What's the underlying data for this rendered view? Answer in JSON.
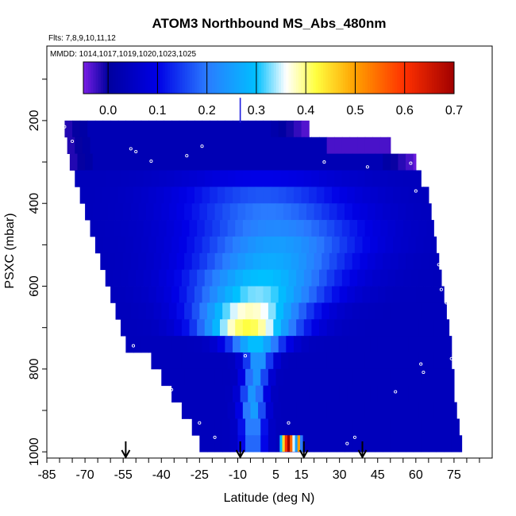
{
  "chart_data": {
    "type": "heatmap",
    "title": "ATOM3 Northbound MS_Abs_480nm",
    "flights_note": "Flts: 7,8,9,10,11,12",
    "dates_note": "MMDD: 1014,1017,1019,1020,1023,1025",
    "xlabel": "Latitude (deg N)",
    "ylabel": "PSXC (mbar)",
    "xlim": [
      -85,
      90
    ],
    "ylim": [
      1015,
      20
    ],
    "x_ticks": [
      "-85",
      "-70",
      "-55",
      "-40",
      "-25",
      "-10",
      "5",
      "15",
      "30",
      "45",
      "60",
      "75"
    ],
    "x_tick_values": [
      -85,
      -70,
      -55,
      -40,
      -25,
      -10,
      5,
      15,
      30,
      45,
      60,
      75
    ],
    "y_ticks": [
      "200",
      "400",
      "600",
      "800",
      "1000"
    ],
    "y_tick_values": [
      200,
      400,
      600,
      800,
      1000
    ],
    "colorbar": {
      "range": [
        -0.05,
        0.7
      ],
      "ticks": [
        "0.0",
        "0.1",
        "0.2",
        "0.3",
        "0.4",
        "0.5",
        "0.6",
        "0.7"
      ],
      "tick_values": [
        0.0,
        0.1,
        0.2,
        0.3,
        0.4,
        0.5,
        0.6,
        0.7
      ],
      "colors": [
        "#7a1ee6",
        "#00009e",
        "#0000e6",
        "#2a7bff",
        "#00c0ff",
        "#ffffff",
        "#ffff40",
        "#ffa000",
        "#ff3000",
        "#a00000"
      ],
      "color_stops": [
        -0.05,
        0.0,
        0.1,
        0.2,
        0.3,
        0.36,
        0.42,
        0.5,
        0.6,
        0.7
      ]
    },
    "arrows_latitude": [
      -54,
      -9,
      16,
      39
    ],
    "pressure_bins": [
      220,
      260,
      300,
      340,
      380,
      420,
      460,
      500,
      540,
      580,
      620,
      660,
      700,
      740,
      780,
      820,
      860,
      900,
      940,
      980
    ],
    "bins": [
      {
        "p": 220,
        "lat_min": -78,
        "lat_max": 18
      },
      {
        "p": 260,
        "lat_min": -77,
        "lat_max": 50
      },
      {
        "p": 300,
        "lat_min": -76,
        "lat_max": 60
      },
      {
        "p": 340,
        "lat_min": -74,
        "lat_max": 62
      },
      {
        "p": 380,
        "lat_min": -72,
        "lat_max": 65
      },
      {
        "p": 420,
        "lat_min": -70,
        "lat_max": 66
      },
      {
        "p": 460,
        "lat_min": -68,
        "lat_max": 67
      },
      {
        "p": 500,
        "lat_min": -66,
        "lat_max": 68
      },
      {
        "p": 540,
        "lat_min": -64,
        "lat_max": 69
      },
      {
        "p": 580,
        "lat_min": -62,
        "lat_max": 70
      },
      {
        "p": 620,
        "lat_min": -60,
        "lat_max": 71
      },
      {
        "p": 660,
        "lat_min": -58,
        "lat_max": 72
      },
      {
        "p": 700,
        "lat_min": -56,
        "lat_max": 73
      },
      {
        "p": 740,
        "lat_min": -54,
        "lat_max": 74
      },
      {
        "p": 780,
        "lat_min": -44,
        "lat_max": 74
      },
      {
        "p": 820,
        "lat_min": -40,
        "lat_max": 75
      },
      {
        "p": 860,
        "lat_min": -36,
        "lat_max": 75
      },
      {
        "p": 900,
        "lat_min": -32,
        "lat_max": 76
      },
      {
        "p": 940,
        "lat_min": -28,
        "lat_max": 77
      },
      {
        "p": 980,
        "lat_min": -25,
        "lat_max": 78
      }
    ],
    "plume": [
      {
        "p": 340,
        "lat": 0,
        "width": 50,
        "value": 0.1
      },
      {
        "p": 380,
        "lat": 0,
        "width": 50,
        "value": 0.17
      },
      {
        "p": 420,
        "lat": 2,
        "width": 50,
        "value": 0.2
      },
      {
        "p": 460,
        "lat": 5,
        "width": 50,
        "value": 0.22
      },
      {
        "p": 500,
        "lat": 5,
        "width": 48,
        "value": 0.25
      },
      {
        "p": 540,
        "lat": 3,
        "width": 45,
        "value": 0.27
      },
      {
        "p": 580,
        "lat": 0,
        "width": 42,
        "value": 0.3
      },
      {
        "p": 620,
        "lat": -2,
        "width": 38,
        "value": 0.33
      },
      {
        "p": 660,
        "lat": -5,
        "width": 32,
        "value": 0.38
      },
      {
        "p": 700,
        "lat": -6,
        "width": 28,
        "value": 0.42
      },
      {
        "p": 740,
        "lat": -3,
        "width": 16,
        "value": 0.3
      },
      {
        "p": 780,
        "lat": -2,
        "width": 8,
        "value": 0.25
      },
      {
        "p": 820,
        "lat": -3,
        "width": 7,
        "value": 0.24
      },
      {
        "p": 860,
        "lat": -4,
        "width": 7,
        "value": 0.24
      },
      {
        "p": 900,
        "lat": -4,
        "width": 7,
        "value": 0.25
      },
      {
        "p": 940,
        "lat": -4,
        "width": 7,
        "value": 0.22
      },
      {
        "p": 980,
        "lat": -4,
        "width": 7,
        "value": 0.2
      }
    ],
    "near_surface_hotspot": [
      {
        "lat": 7,
        "value": 0.3
      },
      {
        "lat": 8,
        "value": 0.45
      },
      {
        "lat": 9,
        "value": 0.6
      },
      {
        "lat": 10,
        "value": 0.7
      },
      {
        "lat": 11,
        "value": 0.55
      },
      {
        "lat": 12,
        "value": 0.35
      },
      {
        "lat": 13,
        "value": 0.25
      },
      {
        "lat": 14,
        "value": 0.5
      },
      {
        "lat": 15,
        "value": 0.2
      }
    ]
  }
}
